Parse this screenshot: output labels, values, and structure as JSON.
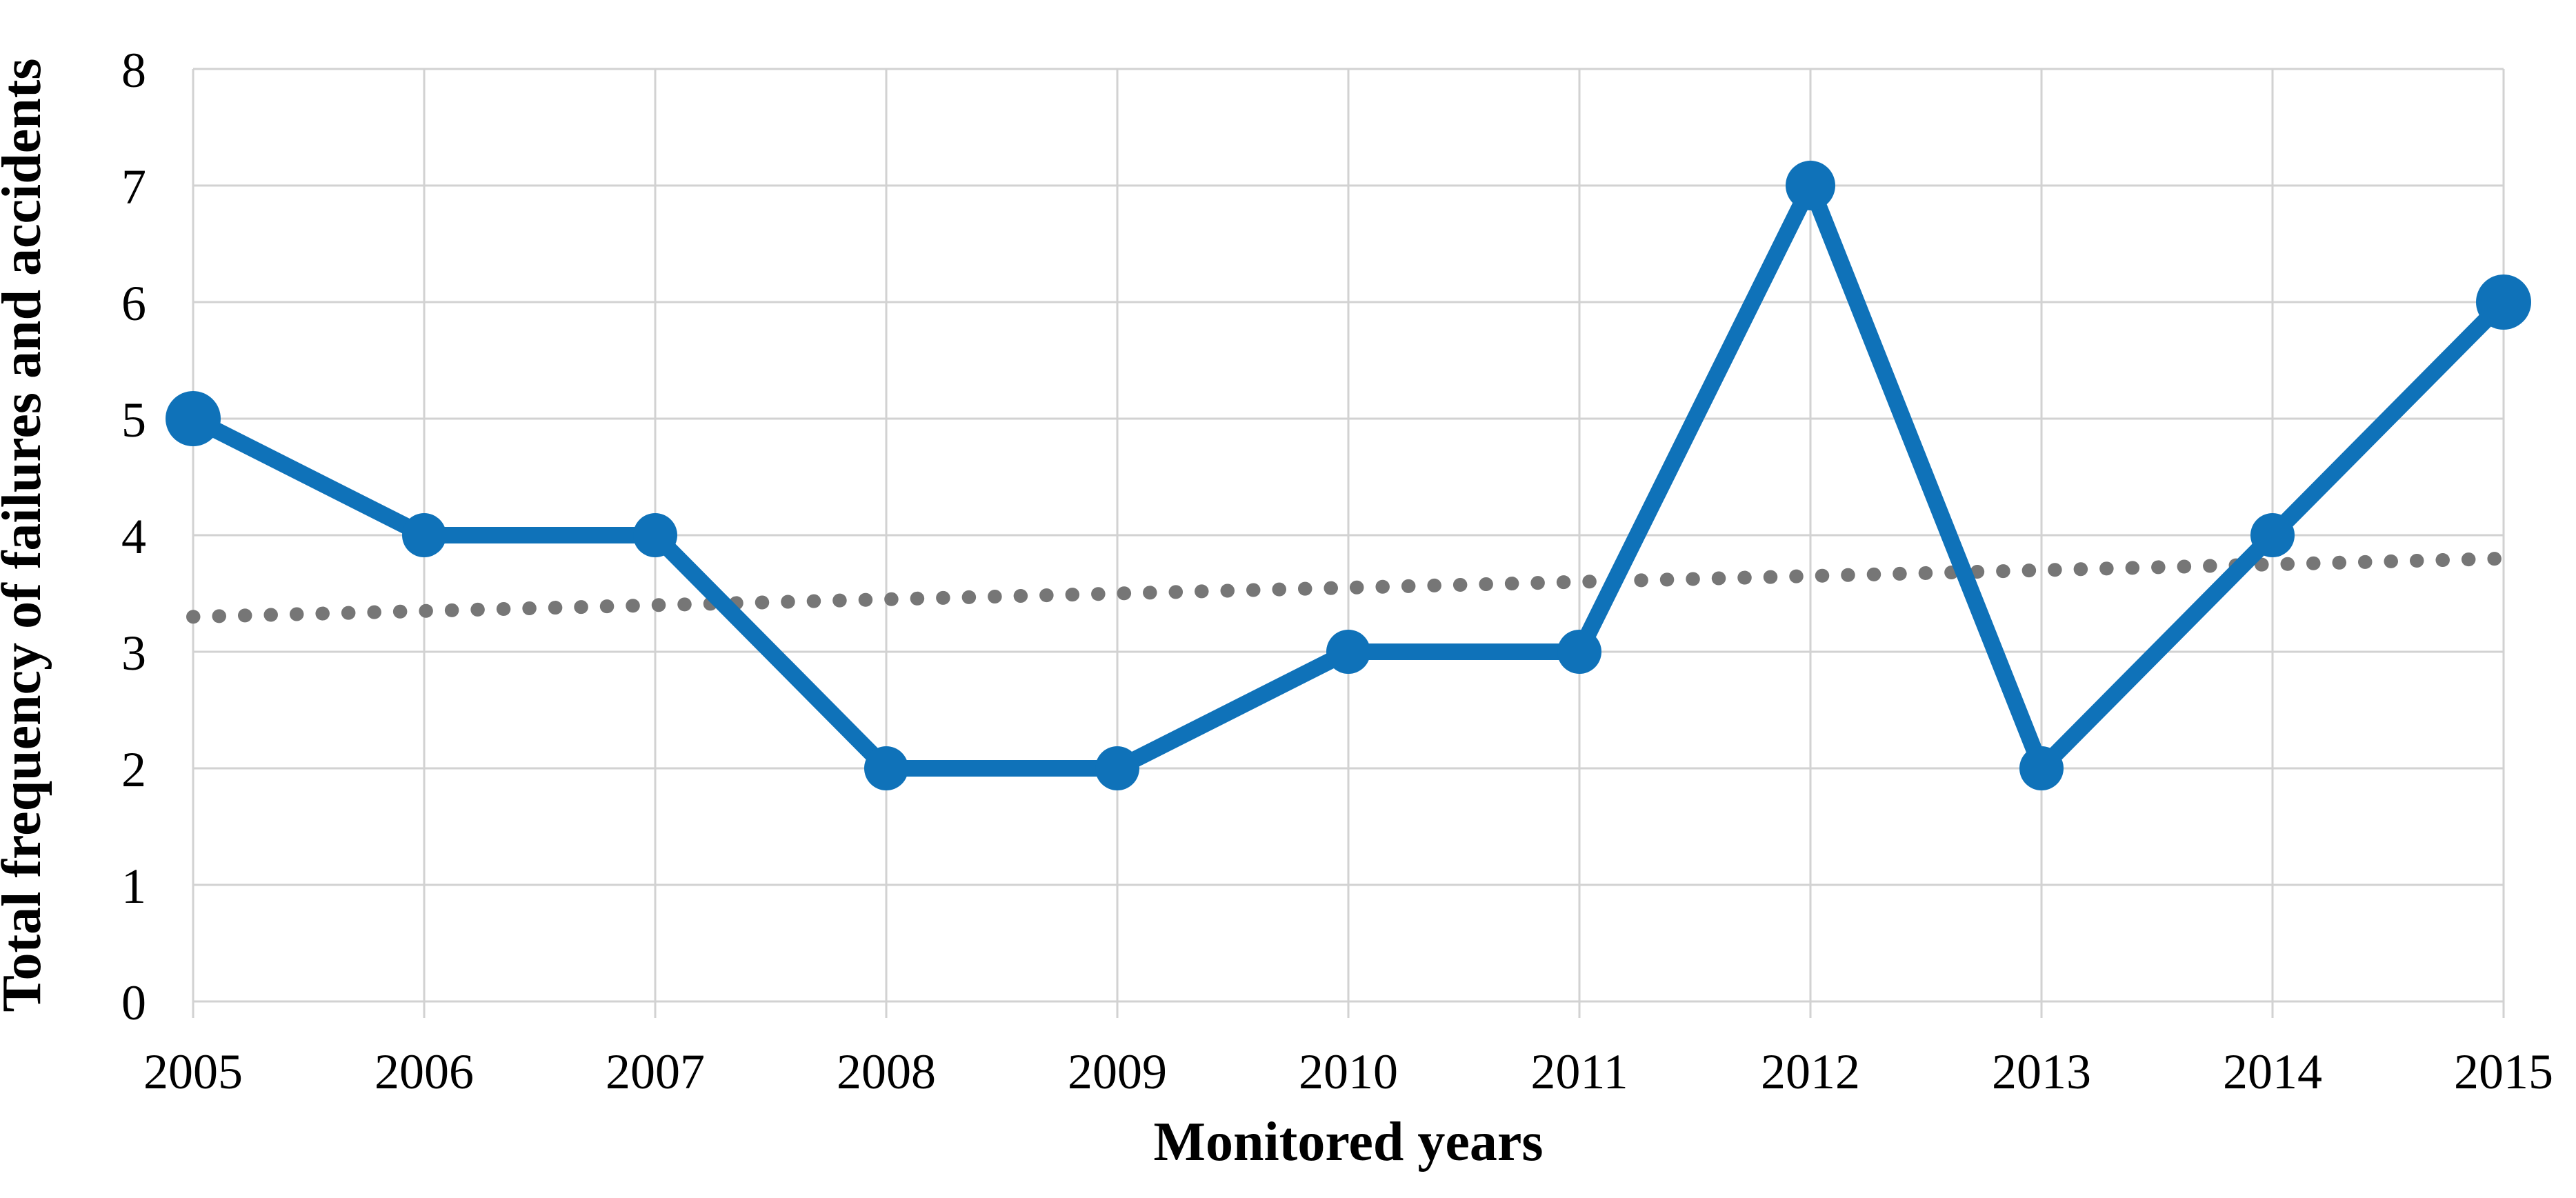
{
  "chart_data": {
    "type": "line",
    "title": "",
    "xlabel": "Monitored years",
    "ylabel": "Total frequency of failures and accidents",
    "categories": [
      "2005",
      "2006",
      "2007",
      "2008",
      "2009",
      "2010",
      "2011",
      "2012",
      "2013",
      "2014",
      "2015"
    ],
    "series": [
      {
        "name": "Total frequency of failures and accidents",
        "values": [
          5,
          4,
          4,
          2,
          2,
          3,
          3,
          7,
          2,
          4,
          6
        ],
        "color": "#0f72b9",
        "line_style": "solid",
        "marker": "circle"
      },
      {
        "name": "Linear trend",
        "role": "trendline",
        "start_value": 3.3,
        "end_value": 3.8,
        "color": "#767676",
        "line_style": "dotted"
      }
    ],
    "ylim": [
      0,
      8
    ],
    "ytick_step": 1,
    "yticks": [
      "0",
      "1",
      "2",
      "3",
      "4",
      "5",
      "6",
      "7",
      "8"
    ],
    "grid": "both",
    "legend": "none"
  },
  "colors": {
    "background": "#ffffff",
    "series_blue": "#0f72b9",
    "trend_gray": "#767676",
    "gridline_gray": "#d2d2d2",
    "text_black": "#000000"
  }
}
